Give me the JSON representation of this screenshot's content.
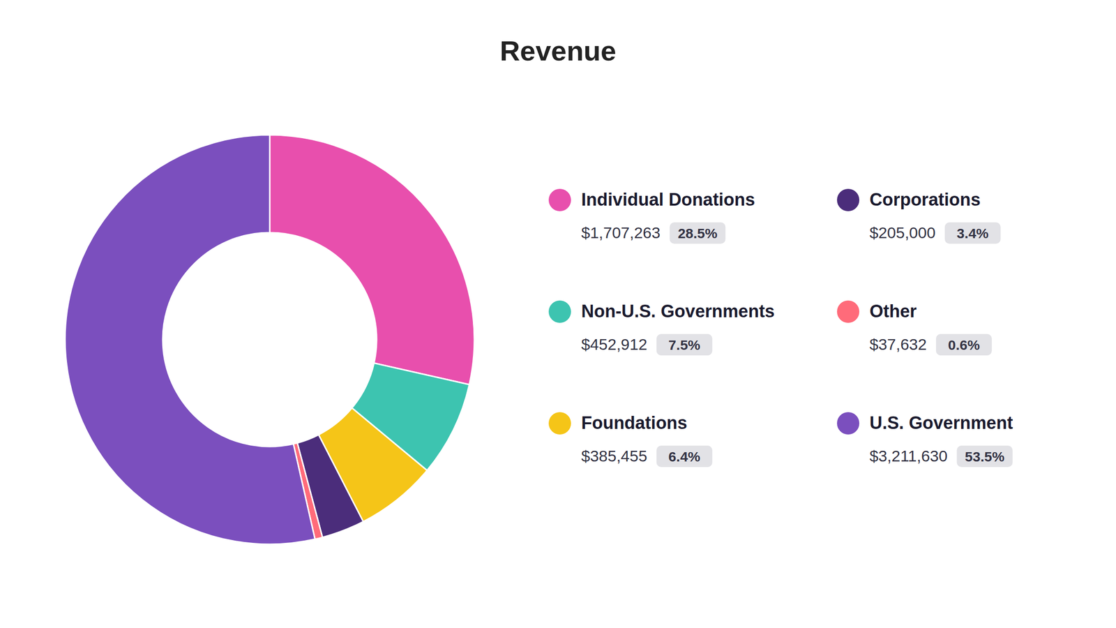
{
  "chart_data": {
    "type": "pie",
    "title": "Revenue",
    "categories": [
      "Individual Donations",
      "Non-U.S. Governments",
      "Foundations",
      "Corporations",
      "Other",
      "U.S. Government"
    ],
    "values": [
      28.5,
      7.5,
      6.4,
      3.4,
      0.6,
      53.5
    ],
    "value_labels": [
      "28.5%",
      "7.5%",
      "6.4%",
      "3.4%",
      "0.6%",
      "53.5%"
    ],
    "amounts": [
      {
        "value": 1707263,
        "label": "$1,707,263"
      },
      {
        "value": 452912,
        "label": "$452,912"
      },
      {
        "value": 385455,
        "label": "$385,455"
      },
      {
        "value": 205000,
        "label": "$205,000"
      },
      {
        "value": 37632,
        "label": "$37,632"
      },
      {
        "value": 3211630,
        "label": "$3,211,630"
      }
    ],
    "colors": [
      "#E84FAD",
      "#3DC4B0",
      "#F5C518",
      "#4B2D7B",
      "#FF6B7A",
      "#7B4FBE"
    ]
  }
}
